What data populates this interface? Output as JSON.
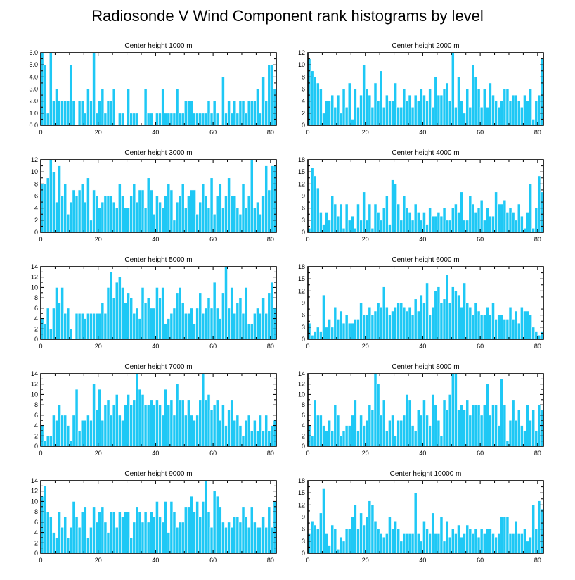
{
  "title": "Radiosonde V Wind Component rank histograms by level",
  "colors": {
    "bar": "#1ec8f5",
    "bar_edge": "#ffffff",
    "axis": "#000000"
  },
  "chart_data": [
    {
      "type": "bar",
      "title": "Center height 1000 m",
      "xlim": [
        0,
        82
      ],
      "ylim": [
        0,
        6
      ],
      "xticks": [
        0,
        20,
        40,
        60,
        80
      ],
      "yticks": [
        0,
        1,
        2,
        3,
        4,
        5,
        6
      ],
      "ytick_labels": [
        "0.0",
        "1.0",
        "2.0",
        "3.0",
        "4.0",
        "5.0",
        "6.0"
      ],
      "values": [
        6,
        5,
        1,
        6,
        2,
        3,
        2,
        2,
        2,
        2,
        5,
        2,
        0,
        2,
        2,
        1,
        3,
        2,
        6,
        1,
        2,
        3,
        1,
        2,
        2,
        3,
        0,
        1,
        1,
        0,
        3,
        1,
        1,
        1,
        0,
        0,
        3,
        1,
        1,
        0,
        1,
        1,
        3,
        1,
        1,
        1,
        1,
        3,
        1,
        1,
        2,
        2,
        2,
        1,
        1,
        1,
        1,
        1,
        2,
        1,
        2,
        1,
        0,
        4,
        1,
        2,
        1,
        2,
        1,
        2,
        2,
        1,
        2,
        2,
        2,
        3,
        1,
        4,
        2,
        5,
        5,
        3
      ]
    },
    {
      "type": "bar",
      "title": "Center height 2000 m",
      "xlim": [
        0,
        82
      ],
      "ylim": [
        0,
        12
      ],
      "xticks": [
        0,
        20,
        40,
        60,
        80
      ],
      "yticks": [
        0,
        2,
        4,
        6,
        8,
        10,
        12
      ],
      "ytick_labels": [
        "0",
        "2",
        "4",
        "6",
        "8",
        "10",
        "12"
      ],
      "values": [
        11,
        9,
        8,
        7,
        6,
        2,
        4,
        4,
        5,
        3,
        5,
        2,
        6,
        3,
        7,
        1,
        6,
        3,
        5,
        10,
        6,
        5,
        3,
        7,
        4,
        9,
        3,
        5,
        4,
        4,
        7,
        3,
        3,
        6,
        4,
        5,
        3,
        5,
        4,
        6,
        5,
        4,
        6,
        3,
        8,
        5,
        5,
        6,
        7,
        4,
        12,
        3,
        8,
        4,
        2,
        6,
        3,
        10,
        8,
        6,
        3,
        6,
        3,
        7,
        5,
        4,
        3,
        4,
        6,
        6,
        4,
        5,
        5,
        4,
        3,
        5,
        4,
        6,
        1,
        4,
        5,
        11
      ]
    },
    {
      "type": "bar",
      "title": "Center height 3000 m",
      "xlim": [
        0,
        82
      ],
      "ylim": [
        0,
        12
      ],
      "xticks": [
        0,
        20,
        40,
        60,
        80
      ],
      "yticks": [
        0,
        2,
        4,
        6,
        8,
        10,
        12
      ],
      "ytick_labels": [
        "0",
        "2",
        "4",
        "6",
        "8",
        "10",
        "12"
      ],
      "values": [
        8,
        8,
        9,
        12,
        10,
        5,
        11,
        6,
        8,
        3,
        5,
        7,
        6,
        7,
        8,
        5,
        9,
        2,
        7,
        6,
        4,
        5,
        6,
        6,
        6,
        5,
        4,
        8,
        6,
        4,
        4,
        6,
        8,
        5,
        7,
        7,
        4,
        9,
        7,
        3,
        6,
        5,
        4,
        6,
        8,
        7,
        2,
        5,
        6,
        8,
        4,
        6,
        7,
        7,
        3,
        5,
        8,
        6,
        4,
        9,
        3,
        6,
        8,
        4,
        6,
        9,
        6,
        6,
        4,
        3,
        8,
        4,
        6,
        12,
        4,
        5,
        3,
        6,
        11,
        7,
        11,
        11
      ]
    },
    {
      "type": "bar",
      "title": "Center height 4000 m",
      "xlim": [
        0,
        82
      ],
      "ylim": [
        0,
        18
      ],
      "xticks": [
        0,
        20,
        40,
        60,
        80
      ],
      "yticks": [
        0,
        3,
        6,
        9,
        12,
        15,
        18
      ],
      "ytick_labels": [
        "0",
        "3",
        "6",
        "9",
        "12",
        "15",
        "18"
      ],
      "values": [
        1,
        16,
        14,
        11,
        5,
        2,
        5,
        3,
        9,
        7,
        4,
        7,
        1,
        7,
        3,
        4,
        1,
        7,
        3,
        10,
        3,
        7,
        1,
        7,
        5,
        3,
        6,
        9,
        2,
        13,
        12,
        7,
        3,
        9,
        6,
        5,
        3,
        7,
        5,
        3,
        5,
        2,
        6,
        4,
        4,
        5,
        4,
        6,
        3,
        3,
        6,
        7,
        5,
        10,
        3,
        3,
        9,
        7,
        5,
        6,
        8,
        3,
        6,
        4,
        4,
        10,
        7,
        7,
        8,
        5,
        6,
        5,
        3,
        7,
        4,
        1,
        5,
        12,
        1,
        6,
        14,
        10
      ]
    },
    {
      "type": "bar",
      "title": "Center height 5000 m",
      "xlim": [
        0,
        82
      ],
      "ylim": [
        0,
        14
      ],
      "xticks": [
        0,
        20,
        40,
        60,
        80
      ],
      "yticks": [
        0,
        2,
        4,
        6,
        8,
        10,
        12,
        14
      ],
      "ytick_labels": [
        "0",
        "2",
        "4",
        "6",
        "8",
        "10",
        "12",
        "14"
      ],
      "values": [
        4,
        3,
        6,
        2,
        6,
        10,
        7,
        10,
        5,
        6,
        2,
        0,
        5,
        5,
        5,
        4,
        5,
        5,
        5,
        5,
        5,
        7,
        5,
        10,
        13,
        8,
        11,
        12,
        10,
        7,
        9,
        8,
        5,
        6,
        4,
        10,
        7,
        8,
        6,
        6,
        10,
        8,
        10,
        3,
        4,
        5,
        6,
        9,
        10,
        7,
        5,
        5,
        6,
        3,
        6,
        9,
        5,
        6,
        8,
        6,
        11,
        6,
        4,
        9,
        14,
        6,
        10,
        5,
        7,
        8,
        5,
        10,
        3,
        3,
        5,
        6,
        5,
        8,
        5,
        9,
        11,
        6
      ]
    },
    {
      "type": "bar",
      "title": "Center height 6000 m",
      "xlim": [
        0,
        82
      ],
      "ylim": [
        0,
        18
      ],
      "xticks": [
        0,
        20,
        40,
        60,
        80
      ],
      "yticks": [
        0,
        3,
        6,
        9,
        12,
        15,
        18
      ],
      "ytick_labels": [
        "0",
        "3",
        "6",
        "9",
        "12",
        "15",
        "18"
      ],
      "values": [
        4,
        1,
        2,
        3,
        2,
        11,
        3,
        5,
        3,
        8,
        5,
        7,
        4,
        6,
        4,
        4,
        5,
        5,
        9,
        6,
        6,
        8,
        6,
        7,
        9,
        8,
        13,
        8,
        6,
        7,
        8,
        9,
        9,
        8,
        7,
        8,
        6,
        10,
        7,
        11,
        9,
        14,
        6,
        8,
        12,
        13,
        9,
        10,
        16,
        9,
        13,
        12,
        11,
        8,
        14,
        9,
        8,
        6,
        9,
        7,
        6,
        6,
        8,
        6,
        9,
        5,
        6,
        6,
        5,
        5,
        8,
        5,
        7,
        4,
        8,
        7,
        7,
        6,
        3,
        2,
        1,
        2
      ]
    },
    {
      "type": "bar",
      "title": "Center height 7000 m",
      "xlim": [
        0,
        82
      ],
      "ylim": [
        0,
        14
      ],
      "xticks": [
        0,
        20,
        40,
        60,
        80
      ],
      "yticks": [
        0,
        2,
        4,
        6,
        8,
        10,
        12,
        14
      ],
      "ytick_labels": [
        "0",
        "2",
        "4",
        "6",
        "8",
        "10",
        "12",
        "14"
      ],
      "values": [
        4,
        1,
        2,
        2,
        6,
        5,
        8,
        6,
        6,
        4,
        1,
        6,
        11,
        3,
        5,
        5,
        6,
        5,
        12,
        7,
        11,
        5,
        8,
        9,
        6,
        8,
        10,
        6,
        5,
        8,
        10,
        8,
        9,
        14,
        11,
        10,
        8,
        8,
        9,
        8,
        9,
        8,
        6,
        11,
        8,
        9,
        6,
        12,
        9,
        9,
        6,
        9,
        6,
        5,
        6,
        9,
        14,
        9,
        10,
        7,
        8,
        9,
        5,
        8,
        4,
        7,
        9,
        5,
        6,
        4,
        2,
        5,
        6,
        3,
        5,
        3,
        6,
        3,
        6,
        3,
        4,
        5
      ]
    },
    {
      "type": "bar",
      "title": "Center height 8000 m",
      "xlim": [
        0,
        82
      ],
      "ylim": [
        0,
        14
      ],
      "xticks": [
        0,
        20,
        40,
        60,
        80
      ],
      "yticks": [
        0,
        2,
        4,
        6,
        8,
        10,
        12,
        14
      ],
      "ytick_labels": [
        "0",
        "2",
        "4",
        "6",
        "8",
        "10",
        "12",
        "14"
      ],
      "values": [
        4,
        2,
        9,
        6,
        6,
        4,
        3,
        5,
        3,
        8,
        6,
        2,
        3,
        4,
        4,
        6,
        9,
        3,
        6,
        4,
        5,
        8,
        7,
        14,
        12,
        6,
        9,
        3,
        5,
        6,
        2,
        5,
        5,
        6,
        10,
        9,
        4,
        3,
        7,
        6,
        9,
        6,
        4,
        10,
        8,
        5,
        2,
        9,
        7,
        10,
        14,
        14,
        7,
        8,
        7,
        9,
        6,
        8,
        8,
        8,
        6,
        8,
        12,
        6,
        8,
        8,
        4,
        13,
        8,
        1,
        5,
        9,
        5,
        7,
        4,
        3,
        8,
        5,
        7,
        3,
        8,
        7
      ]
    },
    {
      "type": "bar",
      "title": "Center height 9000 m",
      "xlim": [
        0,
        82
      ],
      "ylim": [
        0,
        14
      ],
      "xticks": [
        0,
        20,
        40,
        60,
        80
      ],
      "yticks": [
        0,
        2,
        4,
        6,
        8,
        10,
        12,
        14
      ],
      "ytick_labels": [
        "0",
        "2",
        "4",
        "6",
        "8",
        "10",
        "12",
        "14"
      ],
      "values": [
        11,
        13,
        8,
        7,
        4,
        3,
        8,
        5,
        7,
        3,
        5,
        10,
        7,
        5,
        8,
        9,
        3,
        5,
        9,
        6,
        8,
        9,
        6,
        4,
        8,
        8,
        5,
        8,
        7,
        8,
        8,
        3,
        6,
        9,
        8,
        6,
        8,
        6,
        8,
        7,
        10,
        7,
        6,
        10,
        4,
        10,
        8,
        5,
        6,
        6,
        9,
        9,
        11,
        8,
        10,
        7,
        10,
        14,
        8,
        5,
        12,
        11,
        9,
        6,
        5,
        6,
        5,
        7,
        7,
        6,
        9,
        7,
        5,
        9,
        6,
        5,
        5,
        7,
        5,
        9,
        5,
        10
      ]
    },
    {
      "type": "bar",
      "title": "Center height 10000 m",
      "xlim": [
        0,
        82
      ],
      "ylim": [
        0,
        18
      ],
      "xticks": [
        0,
        20,
        40,
        60,
        80
      ],
      "yticks": [
        0,
        3,
        6,
        9,
        12,
        15,
        18
      ],
      "ytick_labels": [
        "0",
        "3",
        "6",
        "9",
        "12",
        "15",
        "18"
      ],
      "values": [
        5,
        8,
        7,
        6,
        10,
        16,
        5,
        2,
        7,
        6,
        1,
        4,
        3,
        6,
        6,
        9,
        12,
        6,
        10,
        7,
        9,
        13,
        12,
        8,
        6,
        5,
        4,
        5,
        9,
        6,
        8,
        6,
        3,
        5,
        5,
        5,
        5,
        15,
        5,
        3,
        8,
        6,
        5,
        10,
        5,
        5,
        9,
        3,
        8,
        4,
        6,
        5,
        7,
        4,
        5,
        7,
        6,
        5,
        6,
        4,
        6,
        5,
        6,
        6,
        5,
        4,
        5,
        9,
        9,
        9,
        5,
        5,
        8,
        5,
        5,
        6,
        3,
        4,
        12,
        6,
        13,
        11
      ]
    }
  ]
}
